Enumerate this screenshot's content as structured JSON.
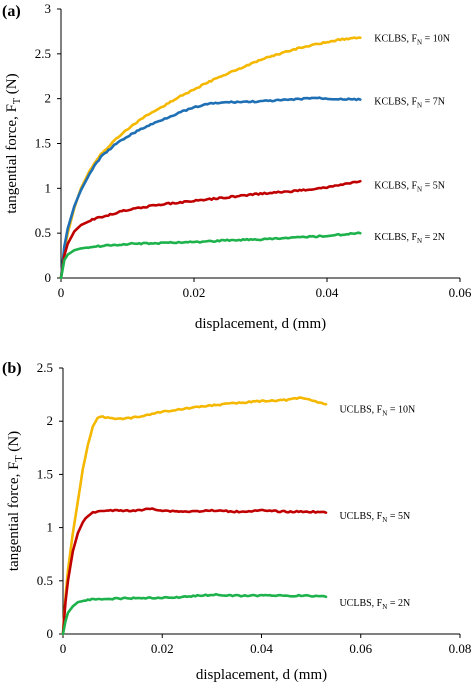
{
  "chart_data": [
    {
      "panel_label": "(a)",
      "type": "line",
      "xlabel": "displacement, d (mm)",
      "ylabel": {
        "main": "tangential force, F",
        "sub": "T",
        "unit": " (N)"
      },
      "xlim": [
        0,
        0.06
      ],
      "ylim": [
        0,
        3
      ],
      "xticks": [
        0,
        0.02,
        0.04,
        0.06
      ],
      "xtick_labels": [
        "0",
        "0.02",
        "0.04",
        "0.06"
      ],
      "yticks": [
        0,
        0.5,
        1,
        1.5,
        2,
        2.5,
        3
      ],
      "ytick_labels": [
        "0",
        "0.5",
        "1",
        "1.5",
        "2",
        "2.5",
        "3"
      ],
      "grid": false,
      "series": [
        {
          "label": {
            "main": "KCLBS, F",
            "sub": "N",
            "rest": " = 10N"
          },
          "color": "#f5b800",
          "label_anchor": [
            0.0462,
            2.68
          ],
          "x": [
            0,
            0.0005,
            0.001,
            0.002,
            0.003,
            0.004,
            0.005,
            0.006,
            0.008,
            0.01,
            0.012,
            0.015,
            0.018,
            0.02,
            0.022,
            0.025,
            0.028,
            0.03,
            0.032,
            0.035,
            0.038,
            0.04,
            0.042,
            0.045
          ],
          "values": [
            0,
            0.3,
            0.5,
            0.78,
            1.0,
            1.15,
            1.28,
            1.38,
            1.53,
            1.66,
            1.77,
            1.9,
            2.03,
            2.1,
            2.18,
            2.28,
            2.37,
            2.43,
            2.48,
            2.55,
            2.6,
            2.63,
            2.66,
            2.68
          ]
        },
        {
          "label": {
            "main": "KCLBS, F",
            "sub": "N",
            "rest": " = 7N"
          },
          "color": "#1f6fb4",
          "label_anchor": [
            0.0462,
            1.98
          ],
          "x": [
            0,
            0.0005,
            0.001,
            0.002,
            0.003,
            0.004,
            0.005,
            0.006,
            0.008,
            0.01,
            0.012,
            0.015,
            0.018,
            0.02,
            0.022,
            0.025,
            0.03,
            0.035,
            0.038,
            0.04,
            0.045
          ],
          "values": [
            0,
            0.35,
            0.55,
            0.8,
            0.98,
            1.12,
            1.25,
            1.35,
            1.48,
            1.58,
            1.66,
            1.76,
            1.85,
            1.9,
            1.94,
            1.96,
            1.97,
            1.99,
            2.01,
            2.0,
            1.99
          ]
        },
        {
          "label": {
            "main": "KCLBS, F",
            "sub": "N",
            "rest": " = 5N"
          },
          "color": "#c00000",
          "label_anchor": [
            0.0462,
            1.04
          ],
          "x": [
            0,
            0.0005,
            0.001,
            0.002,
            0.003,
            0.005,
            0.008,
            0.01,
            0.015,
            0.02,
            0.025,
            0.03,
            0.035,
            0.04,
            0.045
          ],
          "values": [
            0,
            0.25,
            0.38,
            0.52,
            0.59,
            0.66,
            0.72,
            0.76,
            0.82,
            0.86,
            0.9,
            0.94,
            0.97,
            1.01,
            1.08
          ]
        },
        {
          "label": {
            "main": "KCLBS, F",
            "sub": "N",
            "rest": " = 2N"
          },
          "color": "#1db24b",
          "label_anchor": [
            0.0462,
            0.47
          ],
          "x": [
            0,
            0.0005,
            0.001,
            0.002,
            0.003,
            0.005,
            0.01,
            0.015,
            0.02,
            0.025,
            0.03,
            0.035,
            0.04,
            0.045
          ],
          "values": [
            0,
            0.2,
            0.26,
            0.31,
            0.33,
            0.35,
            0.38,
            0.39,
            0.4,
            0.42,
            0.43,
            0.45,
            0.47,
            0.5
          ]
        }
      ]
    },
    {
      "panel_label": "(b)",
      "type": "line",
      "xlabel": "displacement, d (mm)",
      "ylabel": {
        "main": "tangential force, F",
        "sub": "T",
        "unit": " (N)"
      },
      "xlim": [
        0,
        0.08
      ],
      "ylim": [
        0,
        2.5
      ],
      "xticks": [
        0,
        0.02,
        0.04,
        0.06,
        0.08
      ],
      "xtick_labels": [
        "0",
        "0.02",
        "0.04",
        "0.06",
        "0.08"
      ],
      "yticks": [
        0,
        0.5,
        1,
        1.5,
        2,
        2.5
      ],
      "ytick_labels": [
        "0",
        "0.5",
        "1",
        "1.5",
        "2",
        "2.5"
      ],
      "grid": false,
      "series": [
        {
          "label": {
            "main": "UCLBS, F",
            "sub": "N",
            "rest": " = 10N"
          },
          "color": "#f5b800",
          "label_anchor": [
            0.0545,
            2.12
          ],
          "x": [
            0,
            0.0005,
            0.001,
            0.002,
            0.003,
            0.004,
            0.005,
            0.006,
            0.007,
            0.008,
            0.009,
            0.01,
            0.012,
            0.015,
            0.02,
            0.025,
            0.03,
            0.035,
            0.04,
            0.045,
            0.048,
            0.05,
            0.053
          ],
          "values": [
            0,
            0.35,
            0.6,
            0.95,
            1.25,
            1.55,
            1.78,
            1.95,
            2.03,
            2.04,
            2.03,
            2.03,
            2.02,
            2.04,
            2.09,
            2.12,
            2.15,
            2.17,
            2.19,
            2.2,
            2.22,
            2.2,
            2.16
          ]
        },
        {
          "label": {
            "main": "UCLBS, F",
            "sub": "N",
            "rest": " = 5N"
          },
          "color": "#c00000",
          "label_anchor": [
            0.0545,
            1.12
          ],
          "x": [
            0,
            0.0005,
            0.001,
            0.002,
            0.003,
            0.004,
            0.005,
            0.006,
            0.007,
            0.008,
            0.01,
            0.015,
            0.018,
            0.02,
            0.025,
            0.03,
            0.035,
            0.04,
            0.045,
            0.05,
            0.053
          ],
          "values": [
            0,
            0.3,
            0.5,
            0.78,
            0.95,
            1.05,
            1.11,
            1.14,
            1.15,
            1.16,
            1.16,
            1.16,
            1.18,
            1.16,
            1.15,
            1.16,
            1.15,
            1.16,
            1.15,
            1.15,
            1.14
          ]
        },
        {
          "label": {
            "main": "UCLBS, F",
            "sub": "N",
            "rest": " = 2N"
          },
          "color": "#1db24b",
          "label_anchor": [
            0.0545,
            0.3
          ],
          "x": [
            0,
            0.0005,
            0.001,
            0.002,
            0.003,
            0.005,
            0.007,
            0.01,
            0.015,
            0.02,
            0.025,
            0.03,
            0.035,
            0.04,
            0.045,
            0.05,
            0.053
          ],
          "values": [
            0,
            0.12,
            0.2,
            0.26,
            0.3,
            0.32,
            0.33,
            0.33,
            0.34,
            0.34,
            0.35,
            0.37,
            0.36,
            0.36,
            0.36,
            0.36,
            0.35
          ]
        }
      ]
    }
  ]
}
